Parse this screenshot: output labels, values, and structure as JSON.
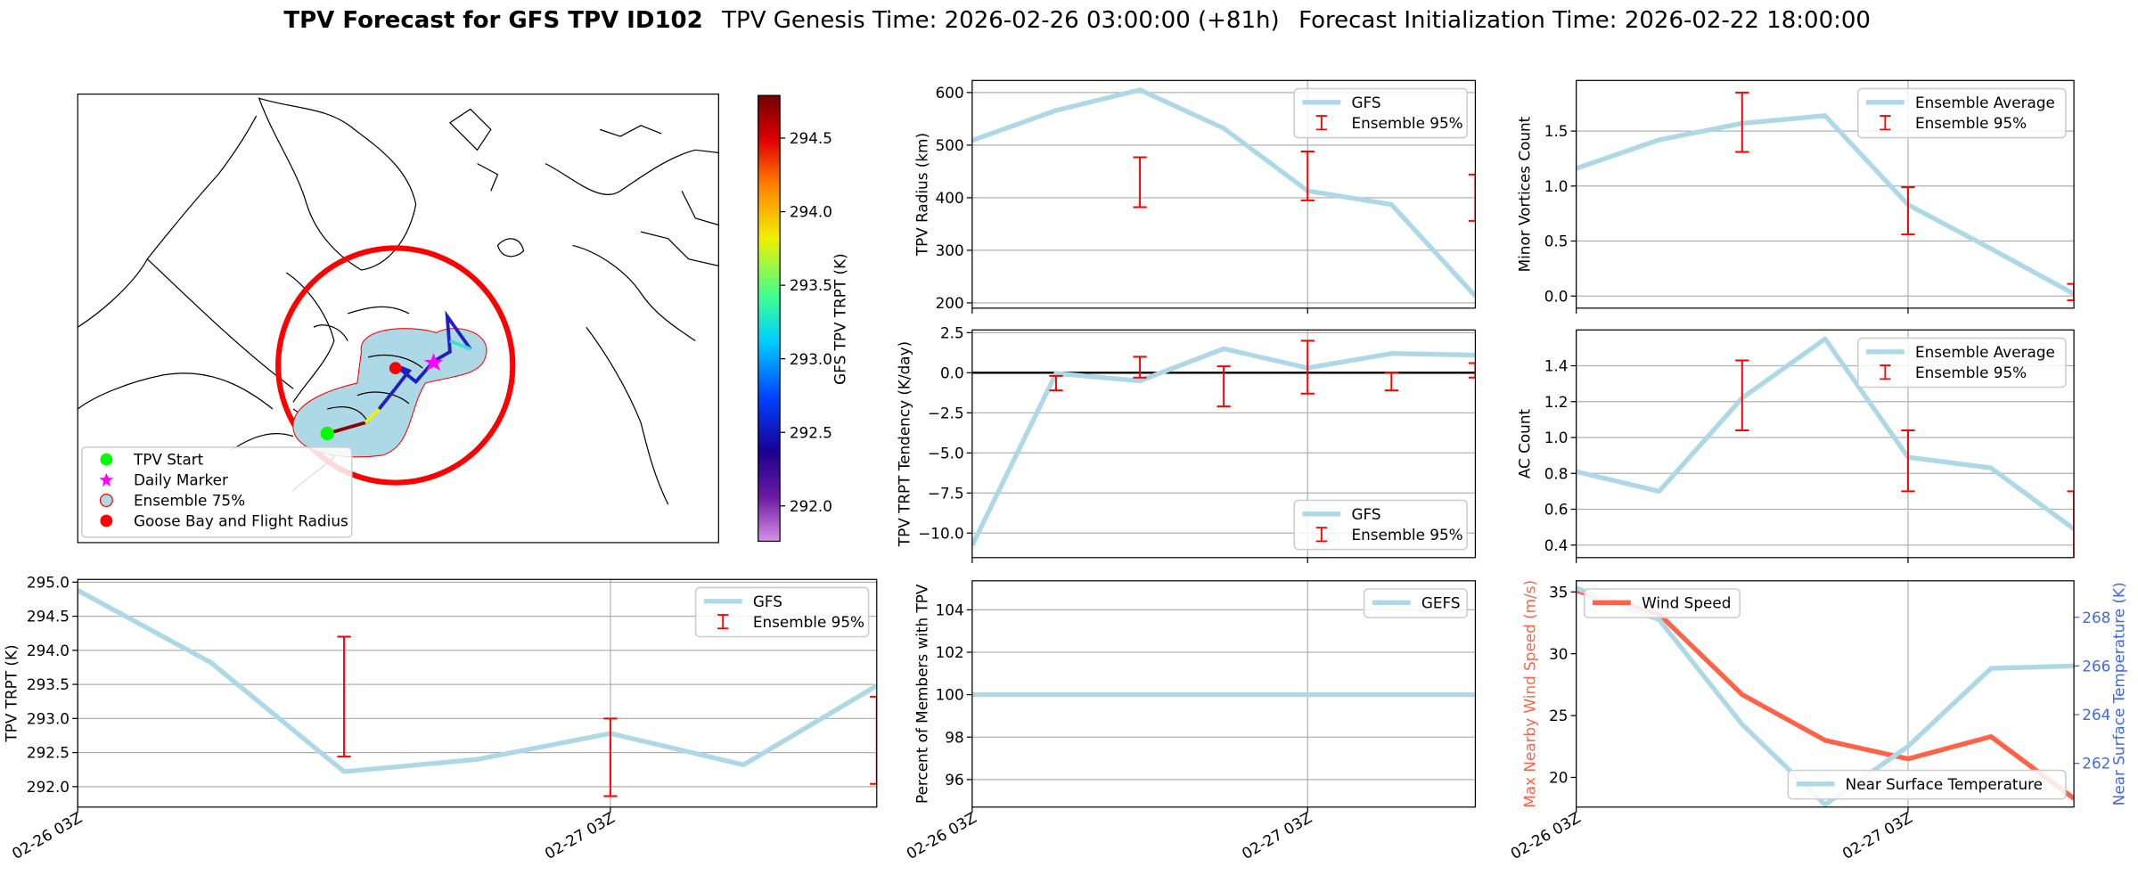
{
  "header": {
    "title": "TPV Forecast for GFS TPV ID102",
    "genesis": "TPV Genesis Time: 2026-02-26 03:00:00 (+81h)",
    "init": "Forecast Initialization Time: 2026-02-22 18:00:00"
  },
  "chart_data": [
    {
      "type": "map",
      "legend_loc": "lower left",
      "legend": [
        {
          "name": "TPV Start",
          "color": "#00ff00",
          "marker": "circle"
        },
        {
          "name": "Daily Marker",
          "color": "#ff00ff",
          "marker": "star"
        },
        {
          "name": "Ensemble 75%",
          "color": "#add8e6",
          "marker": "ring"
        },
        {
          "name": "Goose Bay and Flight Radius",
          "color": "#ff0000",
          "marker": "circle"
        }
      ],
      "colorbar": {
        "label": "GFS TPV TRPT (K)",
        "lim": [
          291.76,
          294.79
        ],
        "ticks": [
          {
            "value": 292,
            "label": "292.0"
          },
          292.5,
          {
            "value": 293,
            "label": "293.0"
          },
          293.5,
          {
            "value": 294,
            "label": "294.0"
          },
          294.5
        ]
      }
    },
    {
      "type": "line",
      "ylabel": "TPV TRPT (K)",
      "categories": [
        "02-26 03Z",
        null,
        null,
        null,
        "02-27 03Z",
        null,
        null
      ],
      "ylim": [
        291.7,
        295.04
      ],
      "yticks": [
        {
          "value": 292,
          "label": "292.0"
        },
        292.5,
        {
          "value": 293,
          "label": "293.0"
        },
        293.5,
        {
          "value": 294,
          "label": "294.0"
        },
        294.5,
        {
          "value": 295,
          "label": "295.0"
        }
      ],
      "grid": true,
      "legend_loc": "upper right",
      "series": [
        {
          "name": "GFS",
          "color": "#add8e6",
          "values": [
            294.88,
            293.82,
            292.22,
            292.4,
            292.78,
            292.32,
            293.48
          ]
        },
        {
          "name": "Ensemble 95%",
          "type": "errorbar",
          "color": "#ff0000",
          "lower": [
            null,
            null,
            292.44,
            null,
            291.86,
            null,
            292.04
          ],
          "upper": [
            null,
            null,
            294.2,
            null,
            293.0,
            null,
            293.32
          ]
        }
      ]
    },
    {
      "type": "line",
      "ylabel": "TPV Radius (km)",
      "ylim": [
        190,
        623
      ],
      "yticks": [
        200,
        300,
        400,
        500,
        600
      ],
      "grid": true,
      "legend_loc": "upper right",
      "series": [
        {
          "name": "GFS",
          "color": "#add8e6",
          "values": [
            509,
            566,
            605,
            532,
            413,
            387,
            213
          ]
        },
        {
          "name": "Ensemble 95%",
          "type": "errorbar",
          "color": "#ff0000",
          "lower": [
            null,
            null,
            382,
            null,
            395,
            null,
            356
          ],
          "upper": [
            null,
            null,
            477,
            null,
            488,
            null,
            444
          ]
        }
      ]
    },
    {
      "type": "line",
      "ylabel": "TPV TRPT Tendency (K/day)",
      "ylim": [
        -11.53,
        2.67
      ],
      "yticks": [
        2.5,
        {
          "value": 0,
          "label": "0.0"
        },
        {
          "value": -2.5,
          "label": "−2.5"
        },
        {
          "value": -5,
          "label": "−5.0"
        },
        {
          "value": -7.5,
          "label": "−7.5"
        },
        {
          "value": -10,
          "label": "−10.0"
        }
      ],
      "grid": true,
      "legend_loc": "lower right",
      "hline": 0,
      "series": [
        {
          "name": "GFS",
          "color": "#add8e6",
          "values": [
            -10.77,
            -0.05,
            -0.5,
            1.5,
            0.3,
            1.2,
            1.1
          ]
        },
        {
          "name": "Ensemble 95%",
          "type": "errorbar",
          "color": "#ff0000",
          "lower": [
            null,
            -1.1,
            -0.3,
            -2.1,
            -1.3,
            -1.1,
            -0.3
          ],
          "upper": [
            null,
            -0.2,
            1.0,
            0.4,
            2.0,
            0,
            0.6
          ]
        }
      ]
    },
    {
      "type": "line",
      "ylabel": "Percent of Members with TPV",
      "categories": [
        "02-26 03Z",
        null,
        null,
        null,
        "02-27 03Z",
        null,
        null
      ],
      "ylim": [
        94.7,
        105.37
      ],
      "yticks": [
        96,
        98,
        100,
        102,
        104
      ],
      "grid": true,
      "legend_loc": "upper right",
      "series": [
        {
          "name": "GEFS",
          "color": "#add8e6",
          "values": [
            100,
            100,
            100,
            100,
            100,
            100,
            100
          ]
        }
      ]
    },
    {
      "type": "line",
      "ylabel": "Minor Vortices Count",
      "ylim": [
        -0.11,
        1.96
      ],
      "yticks": [
        {
          "value": 0,
          "label": "0.0"
        },
        0.5,
        {
          "value": 1,
          "label": "1.0"
        },
        1.5
      ],
      "grid": true,
      "legend_loc": "upper right",
      "series": [
        {
          "name": "Ensemble Average",
          "color": "#add8e6",
          "values": [
            1.16,
            1.42,
            1.57,
            1.64,
            0.83,
            0.43,
            0.02
          ]
        },
        {
          "name": "Ensemble 95%",
          "type": "errorbar",
          "color": "#ff0000",
          "lower": [
            null,
            null,
            1.31,
            null,
            0.56,
            null,
            -0.04
          ],
          "upper": [
            null,
            null,
            1.85,
            null,
            0.99,
            null,
            0.11
          ]
        }
      ]
    },
    {
      "type": "line",
      "ylabel": "AC Count",
      "ylim": [
        0.33,
        1.6
      ],
      "yticks": [
        0.4,
        0.6,
        0.8,
        {
          "value": 1,
          "label": "1.0"
        },
        1.2,
        1.4
      ],
      "grid": true,
      "legend_loc": "upper right",
      "series": [
        {
          "name": "Ensemble Average",
          "color": "#add8e6",
          "values": [
            0.81,
            0.7,
            1.22,
            1.55,
            0.89,
            0.83,
            0.49
          ]
        },
        {
          "name": "Ensemble 95%",
          "type": "errorbar",
          "color": "#ff0000",
          "lower": [
            null,
            null,
            1.04,
            null,
            0.7,
            null,
            0.3
          ],
          "upper": [
            null,
            null,
            1.43,
            null,
            1.04,
            null,
            0.7
          ]
        }
      ]
    },
    {
      "type": "line",
      "ylabel": "Max Nearby Wind Speed (m/s)",
      "ylabel_color": "#ff6347",
      "y2label": "Near Surface Temperature (K)",
      "y2_color": "#4169e1",
      "categories": [
        "02-26 03Z",
        null,
        null,
        null,
        "02-27 03Z",
        null,
        null
      ],
      "ylim": [
        17.6,
        35.9
      ],
      "yticks": [
        20,
        25,
        30,
        35
      ],
      "y2lim": [
        260.2,
        269.5
      ],
      "y2ticks": [
        262,
        264,
        266,
        268
      ],
      "grid": "x",
      "series": [
        {
          "name": "Wind Speed",
          "color": "#ff6347",
          "legend_loc": "upper left",
          "values": [
            35.1,
            33.2,
            26.7,
            23.0,
            21.5,
            23.3,
            18.3
          ]
        },
        {
          "name": "Near Surface Temperature",
          "color": "#add8e6",
          "axis": "y2",
          "legend_loc": "lower right",
          "values": [
            269.2,
            267.9,
            263.6,
            260.3,
            262.7,
            265.9,
            266.0
          ]
        }
      ]
    }
  ]
}
